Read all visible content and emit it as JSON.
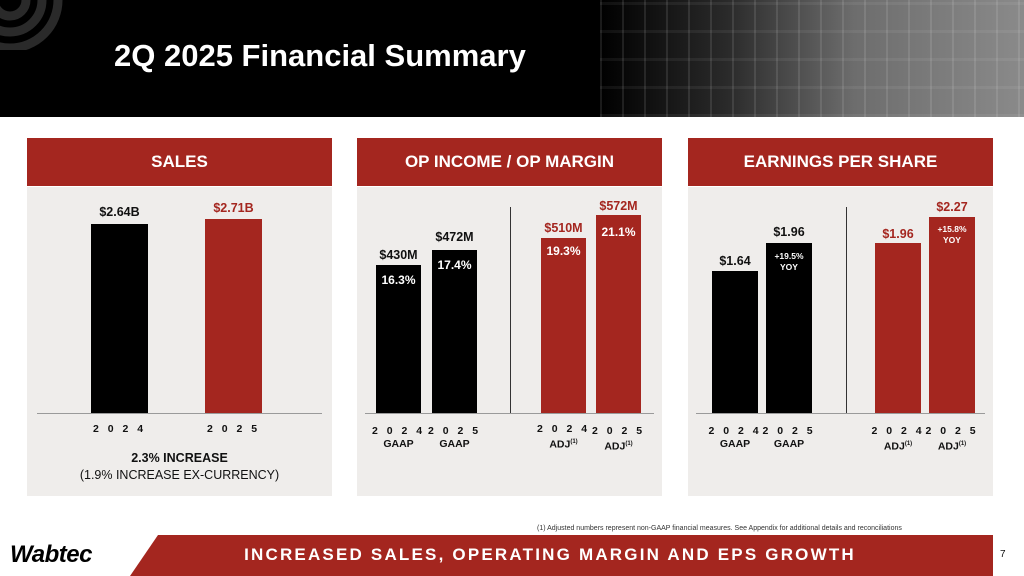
{
  "title": "2Q 2025 Financial Summary",
  "panels": {
    "sales": {
      "header": "SALES",
      "bars": [
        {
          "category": "2 0 2 4",
          "value_label": "$2.64B",
          "value": 2.64
        },
        {
          "category": "2 0 2 5",
          "value_label": "$2.71B",
          "value": 2.71
        }
      ],
      "note_line1": "2.3% INCREASE",
      "note_line2": "(1.9% INCREASE EX-CURRENCY)"
    },
    "op_income": {
      "header": "OP INCOME / OP MARGIN",
      "bars": [
        {
          "category": "2 0 2 4",
          "sub": "GAAP",
          "value_label": "$430M",
          "value": 430,
          "margin": "16.3%"
        },
        {
          "category": "2 0 2 5",
          "sub": "GAAP",
          "value_label": "$472M",
          "value": 472,
          "margin": "17.4%"
        },
        {
          "category": "2 0 2 4",
          "sub": "ADJ",
          "footnote_mark": "(1)",
          "value_label": "$510M",
          "value": 510,
          "margin": "19.3%"
        },
        {
          "category": "2 0 2 5",
          "sub": "ADJ",
          "footnote_mark": "(1)",
          "value_label": "$572M",
          "value": 572,
          "margin": "21.1%"
        }
      ]
    },
    "eps": {
      "header": "EARNINGS PER SHARE",
      "bars": [
        {
          "category": "2 0 2 4",
          "sub": "GAAP",
          "value_label": "$1.64",
          "value": 1.64
        },
        {
          "category": "2 0 2 5",
          "sub": "GAAP",
          "value_label": "$1.96",
          "value": 1.96,
          "growth": "+19.5%",
          "growth_unit": "YOY"
        },
        {
          "category": "2 0 2 4",
          "sub": "ADJ",
          "footnote_mark": "(1)",
          "value_label": "$1.96",
          "value": 1.96
        },
        {
          "category": "2 0 2 5",
          "sub": "ADJ",
          "footnote_mark": "(1)",
          "value_label": "$2.27",
          "value": 2.27,
          "growth": "+15.8%",
          "growth_unit": "YOY"
        }
      ]
    }
  },
  "footnote": "(1)  Adjusted numbers represent non-GAAP financial measures.  See Appendix for additional details and reconciliations",
  "footer_banner": "INCREASED SALES, OPERATING MARGIN AND EPS GROWTH",
  "brand": "Wabtec",
  "page_number": "7",
  "colors": {
    "brand_red": "#a4261f",
    "black": "#000000",
    "panel_bg": "#efedeb"
  },
  "chart_data": [
    {
      "type": "bar",
      "title": "SALES",
      "categories": [
        "2024",
        "2025"
      ],
      "values": [
        2.64,
        2.71
      ],
      "units": "$B"
    },
    {
      "type": "bar",
      "title": "OP INCOME / OP MARGIN",
      "categories": [
        "2024 GAAP",
        "2025 GAAP",
        "2024 ADJ",
        "2025 ADJ"
      ],
      "values": [
        430,
        472,
        510,
        572
      ],
      "margins": [
        16.3,
        17.4,
        19.3,
        21.1
      ],
      "units": "$M"
    },
    {
      "type": "bar",
      "title": "EARNINGS PER SHARE",
      "categories": [
        "2024 GAAP",
        "2025 GAAP",
        "2024 ADJ",
        "2025 ADJ"
      ],
      "values": [
        1.64,
        1.96,
        1.96,
        2.27
      ],
      "units": "$"
    }
  ]
}
